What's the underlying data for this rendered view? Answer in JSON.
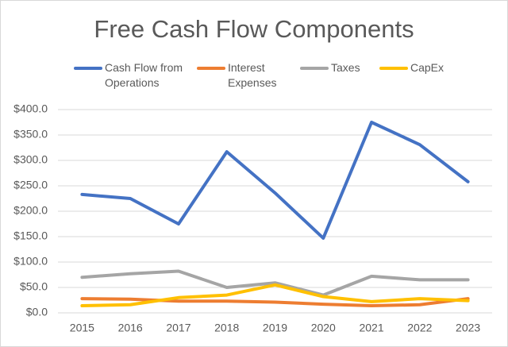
{
  "chart_data": {
    "type": "line",
    "title": "Free Cash Flow Components",
    "categories": [
      "2015",
      "2016",
      "2017",
      "2018",
      "2019",
      "2020",
      "2021",
      "2022",
      "2023"
    ],
    "series": [
      {
        "name": "Cash Flow from Operations",
        "color": "#4472c4",
        "values": [
          233,
          225,
          175,
          317,
          236,
          147,
          375,
          331,
          258
        ]
      },
      {
        "name": "Interest Expenses",
        "color": "#ed7d31",
        "values": [
          28,
          27,
          23,
          23,
          21,
          17,
          14,
          16,
          28
        ]
      },
      {
        "name": "Taxes",
        "color": "#a5a5a5",
        "values": [
          70,
          77,
          82,
          50,
          59,
          35,
          72,
          65,
          65
        ]
      },
      {
        "name": "CapEx",
        "color": "#ffc000",
        "values": [
          14,
          16,
          30,
          35,
          55,
          32,
          22,
          28,
          24
        ]
      }
    ],
    "ylim": [
      0,
      400
    ],
    "yticks": [
      {
        "value": 0,
        "label": "$0.0"
      },
      {
        "value": 50,
        "label": "$50.0"
      },
      {
        "value": 100,
        "label": "$100.0"
      },
      {
        "value": 150,
        "label": "$150.0"
      },
      {
        "value": 200,
        "label": "$200.0"
      },
      {
        "value": 250,
        "label": "$250.0"
      },
      {
        "value": 300,
        "label": "$300.0"
      },
      {
        "value": 350,
        "label": "$350.0"
      },
      {
        "value": 400,
        "label": "$400.0"
      }
    ],
    "grid": true,
    "legend": "top"
  }
}
